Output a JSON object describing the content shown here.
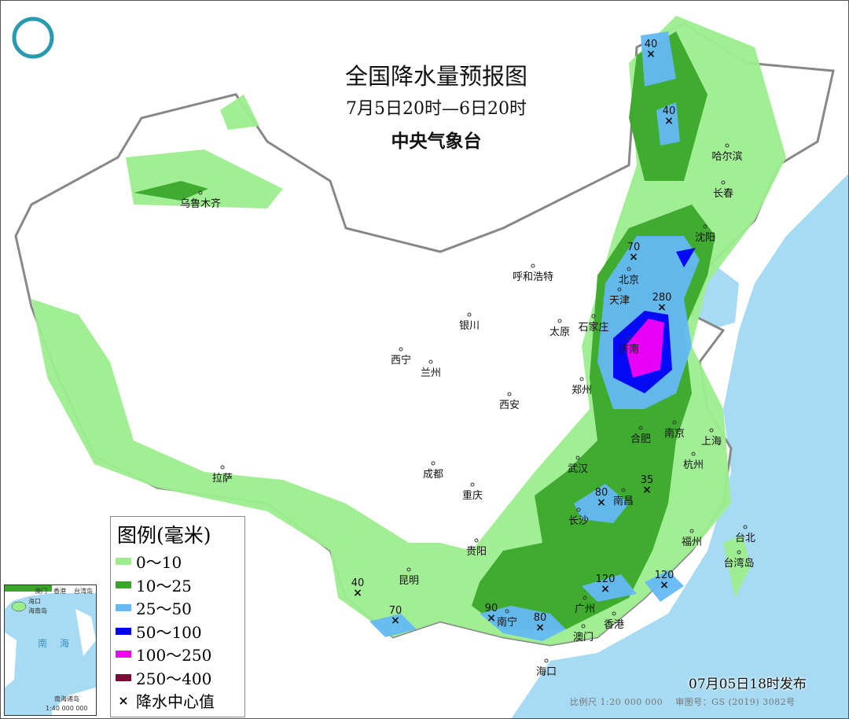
{
  "title": "全国降水量预报图",
  "period": "7月5日20时—6日20时",
  "issuer": "中央气象台",
  "legend": {
    "heading": "图例(毫米)",
    "items": [
      {
        "label": "0～10",
        "color": "#9ded8e"
      },
      {
        "label": "10～25",
        "color": "#3aa629"
      },
      {
        "label": "25～50",
        "color": "#64b8f4"
      },
      {
        "label": "50～100",
        "color": "#0000f5"
      },
      {
        "label": "100～250",
        "color": "#f500f5"
      },
      {
        "label": "250～400",
        "color": "#7a0a3a"
      }
    ],
    "center_label": "降水中心值",
    "center_symbol": "×"
  },
  "cities": [
    "乌鲁木齐",
    "哈尔滨",
    "长春",
    "沈阳",
    "呼和浩特",
    "北京",
    "天津",
    "石家庄",
    "太原",
    "济南",
    "银川",
    "西宁",
    "兰州",
    "郑州",
    "西安",
    "南京",
    "合肥",
    "上海",
    "杭州",
    "武汉",
    "成都",
    "重庆",
    "拉萨",
    "南昌",
    "长沙",
    "贵阳",
    "福州",
    "台北",
    "昆明",
    "广州",
    "南宁",
    "香港",
    "澳门",
    "海口",
    "台湾岛"
  ],
  "rain_centers": [
    "40",
    "40",
    "70",
    "280",
    "35",
    "80",
    "120",
    "120",
    "40",
    "70",
    "90",
    "80"
  ],
  "inset": {
    "labels": [
      "澳门",
      "香港",
      "台湾岛",
      "海口",
      "海南岛",
      "南海",
      "南海诸岛"
    ],
    "scale": "1:40 000 000"
  },
  "issue_time": "07月05日18时发布",
  "scale_text": "比例尺 1:20 000 000",
  "map_review_no": "审图号：GS (2019) 3082号",
  "colors": {
    "sea": "#a7dbf3",
    "land": "#ffffff",
    "border": "#999999"
  }
}
